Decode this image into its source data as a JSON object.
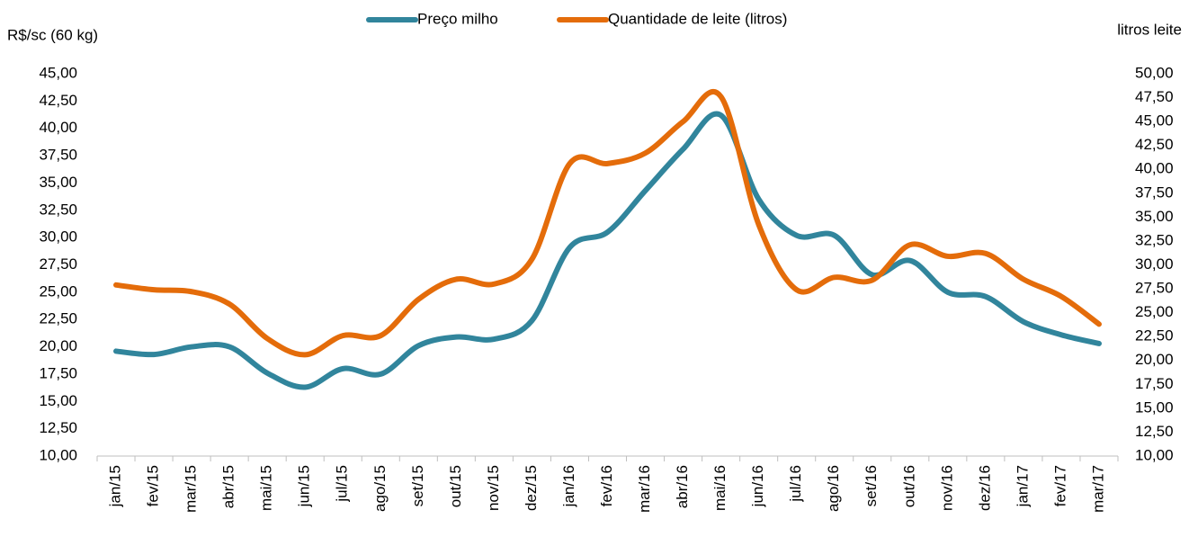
{
  "chart_data": {
    "type": "line",
    "y_label": "R$/sc (60 kg)",
    "y2_label": "litros leite",
    "categories": [
      "jan/15",
      "fev/15",
      "mar/15",
      "abr/15",
      "mai/15",
      "jun/15",
      "jul/15",
      "ago/15",
      "set/15",
      "out/15",
      "nov/15",
      "dez/15",
      "jan/16",
      "fev/16",
      "mar/16",
      "abr/16",
      "mai/16",
      "jun/16",
      "jul/16",
      "ago/16",
      "set/16",
      "out/16",
      "nov/16",
      "dez/16",
      "jan/17",
      "fev/17",
      "mar/17"
    ],
    "series": [
      {
        "name": "Preço milho",
        "color": "#31859c",
        "axis": "y",
        "values": [
          19.6,
          19.3,
          20.0,
          20.0,
          17.6,
          16.3,
          18.0,
          17.5,
          20.1,
          20.9,
          20.7,
          22.4,
          29.1,
          30.5,
          34.3,
          38.1,
          41.2,
          33.5,
          30.2,
          30.2,
          26.6,
          27.9,
          25.0,
          24.6,
          22.3,
          21.1,
          20.3
        ]
      },
      {
        "name": "Quantidade de leite (litros)",
        "color": "#e46c0a",
        "axis": "y2",
        "values": [
          27.9,
          27.4,
          27.2,
          25.9,
          22.3,
          20.6,
          22.6,
          22.6,
          26.4,
          28.5,
          28.0,
          30.6,
          40.6,
          40.6,
          41.7,
          45.0,
          47.6,
          34.2,
          27.4,
          28.7,
          28.4,
          32.1,
          30.9,
          31.2,
          28.5,
          26.7,
          23.8
        ]
      }
    ],
    "ylim": [
      10,
      45
    ],
    "yticks": [
      {
        "value": 10,
        "label": "10,00"
      },
      {
        "value": 12.5,
        "label": "12,50"
      },
      {
        "value": 15,
        "label": "15,00"
      },
      {
        "value": 17.5,
        "label": "17,50"
      },
      {
        "value": 20,
        "label": "20,00"
      },
      {
        "value": 22.5,
        "label": "22,50"
      },
      {
        "value": 25,
        "label": "25,00"
      },
      {
        "value": 27.5,
        "label": "27,50"
      },
      {
        "value": 30,
        "label": "30,00"
      },
      {
        "value": 32.5,
        "label": "32,50"
      },
      {
        "value": 35,
        "label": "35,00"
      },
      {
        "value": 37.5,
        "label": "37,50"
      },
      {
        "value": 40,
        "label": "40,00"
      },
      {
        "value": 42.5,
        "label": "42,50"
      },
      {
        "value": 45,
        "label": "45,00"
      }
    ],
    "y2lim": [
      10,
      50
    ],
    "y2ticks": [
      {
        "value": 10,
        "label": "10,00"
      },
      {
        "value": 12.5,
        "label": "12,50"
      },
      {
        "value": 15,
        "label": "15,00"
      },
      {
        "value": 17.5,
        "label": "17,50"
      },
      {
        "value": 20,
        "label": "20,00"
      },
      {
        "value": 22.5,
        "label": "22,50"
      },
      {
        "value": 25,
        "label": "25,00"
      },
      {
        "value": 27.5,
        "label": "27,50"
      },
      {
        "value": 30,
        "label": "30,00"
      },
      {
        "value": 32.5,
        "label": "32,50"
      },
      {
        "value": 35,
        "label": "35,00"
      },
      {
        "value": 37.5,
        "label": "37,50"
      },
      {
        "value": 40,
        "label": "40,00"
      },
      {
        "value": 42.5,
        "label": "42,50"
      },
      {
        "value": 45,
        "label": "45,00"
      },
      {
        "value": 47.5,
        "label": "47,50"
      },
      {
        "value": 50,
        "label": "50,00"
      }
    ],
    "grid": false,
    "legend": "top"
  }
}
